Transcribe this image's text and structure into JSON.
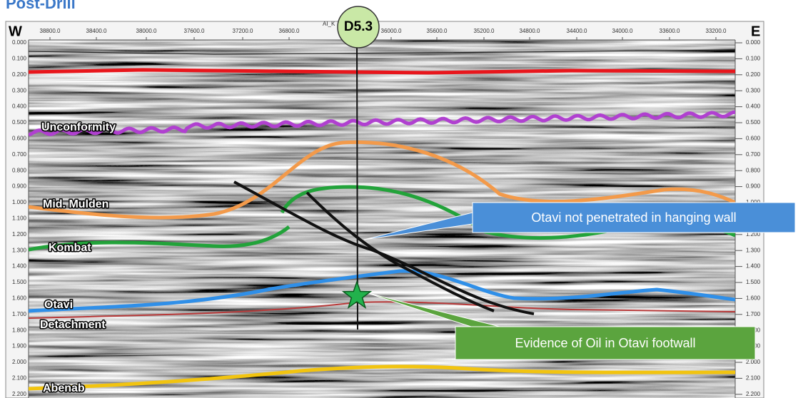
{
  "title": "Post-Drill",
  "compass": {
    "west": "W",
    "east": "E"
  },
  "well": {
    "name": "D5.3",
    "label": "AI_K"
  },
  "distance_ticks": [
    "38800.0",
    "38400.0",
    "38000.0",
    "37600.0",
    "37200.0",
    "36800.0",
    "36000.0",
    "35600.0",
    "35200.0",
    "34800.0",
    "34400.0",
    "34000.0",
    "33600.0",
    "33200.0"
  ],
  "time_ticks": [
    "0.000",
    "0.100",
    "0.200",
    "0.300",
    "0.400",
    "0.500",
    "0.600",
    "0.700",
    "0.800",
    "0.900",
    "1.000",
    "1.100",
    "1.200",
    "1.300",
    "1.400",
    "1.500",
    "1.600",
    "1.700",
    "1.800",
    "1.900",
    "2.000",
    "2.100",
    "2.200"
  ],
  "horizons": [
    {
      "name": "Unconformity",
      "color": "#b040d0"
    },
    {
      "name": "Mid. Mulden",
      "color": "#f39a4a"
    },
    {
      "name": "Kombat",
      "color": "#22a33a"
    },
    {
      "name": "Otavi",
      "color": "#2f8fe8"
    },
    {
      "name": "Detachment",
      "color": "#b83a3a"
    },
    {
      "name": "Abenab",
      "color": "#f2c40f"
    }
  ],
  "callouts": [
    {
      "text": "Otavi not penetrated in hanging wall",
      "color": "#4a8fd8"
    },
    {
      "text": "Evidence of Oil in Otavi footwall",
      "color": "#5ba43e"
    }
  ]
}
